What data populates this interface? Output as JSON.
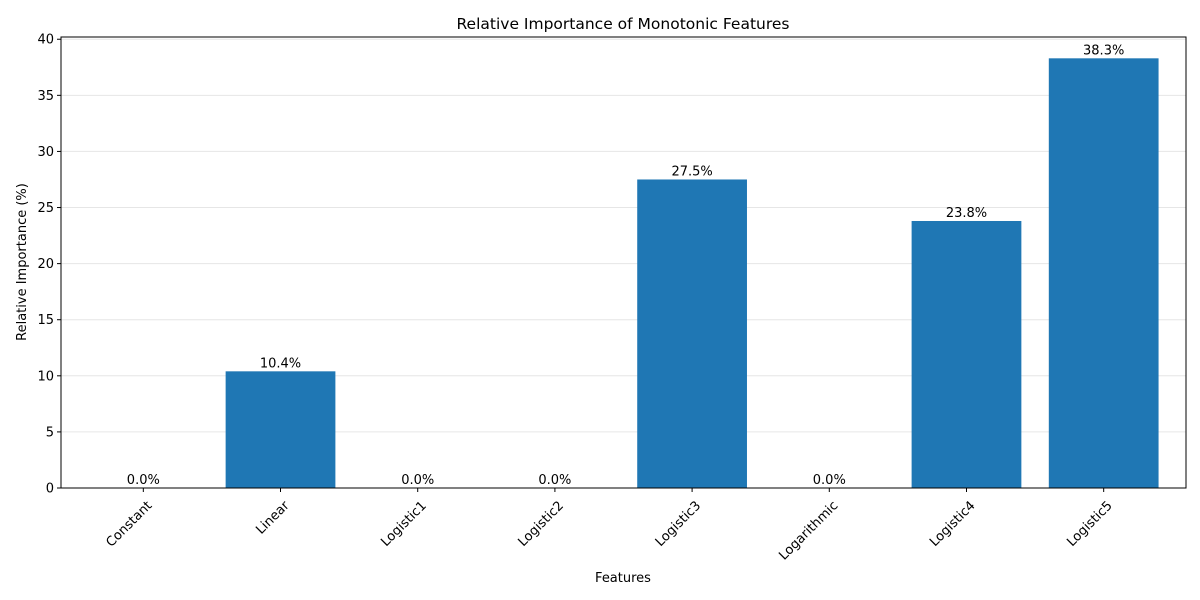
{
  "chart_data": {
    "type": "bar",
    "title": "Relative Importance of Monotonic Features",
    "xlabel": "Features",
    "ylabel": "Relative Importance (%)",
    "categories": [
      "Constant",
      "Linear",
      "Logistic1",
      "Logistic2",
      "Logistic3",
      "Logarithmic",
      "Logistic4",
      "Logistic5"
    ],
    "values": [
      0.0,
      10.4,
      0.0,
      0.0,
      27.5,
      0.0,
      23.8,
      38.3
    ],
    "value_labels": [
      "0.0%",
      "10.4%",
      "0.0%",
      "0.0%",
      "27.5%",
      "0.0%",
      "23.8%",
      "38.3%"
    ],
    "ylim": [
      0,
      40.2
    ],
    "yticks": [
      0,
      5,
      10,
      15,
      20,
      25,
      30,
      35,
      40
    ],
    "grid": "y",
    "bar_color": "#1f77b4",
    "grid_color": "#e6e6e6"
  }
}
